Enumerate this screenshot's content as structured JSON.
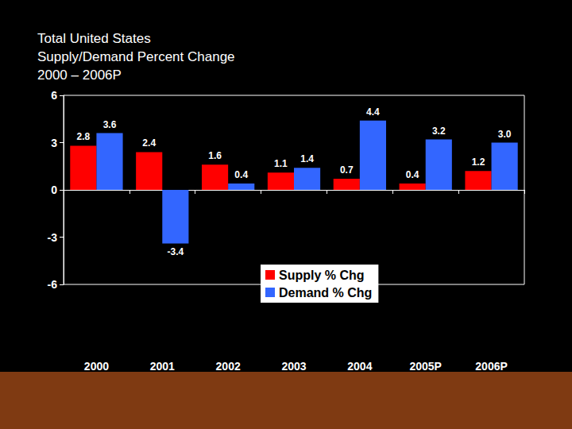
{
  "chart_data": {
    "type": "bar",
    "title": "Total United States\nSupply/Demand Percent Change\n2000 – 2006P",
    "categories": [
      "2000",
      "2001",
      "2002",
      "2003",
      "2004",
      "2005P",
      "2006P"
    ],
    "series": [
      {
        "name": "Supply % Chg",
        "color": "#ff0000",
        "values": [
          2.8,
          2.4,
          1.6,
          1.1,
          0.7,
          0.4,
          1.2
        ]
      },
      {
        "name": "Demand % Chg",
        "color": "#3366ff",
        "values": [
          3.6,
          -3.4,
          0.4,
          1.4,
          4.4,
          3.2,
          3.0
        ],
        "value_labels": [
          "3.6",
          "-3.4",
          "0.4",
          "1.4",
          "4.4",
          "3.2",
          "3.0"
        ]
      }
    ],
    "ylim": [
      -6,
      6
    ],
    "yticks": [
      -6,
      -3,
      0,
      3,
      6
    ],
    "grid": false,
    "legend": "lower center",
    "data_labels": true
  }
}
